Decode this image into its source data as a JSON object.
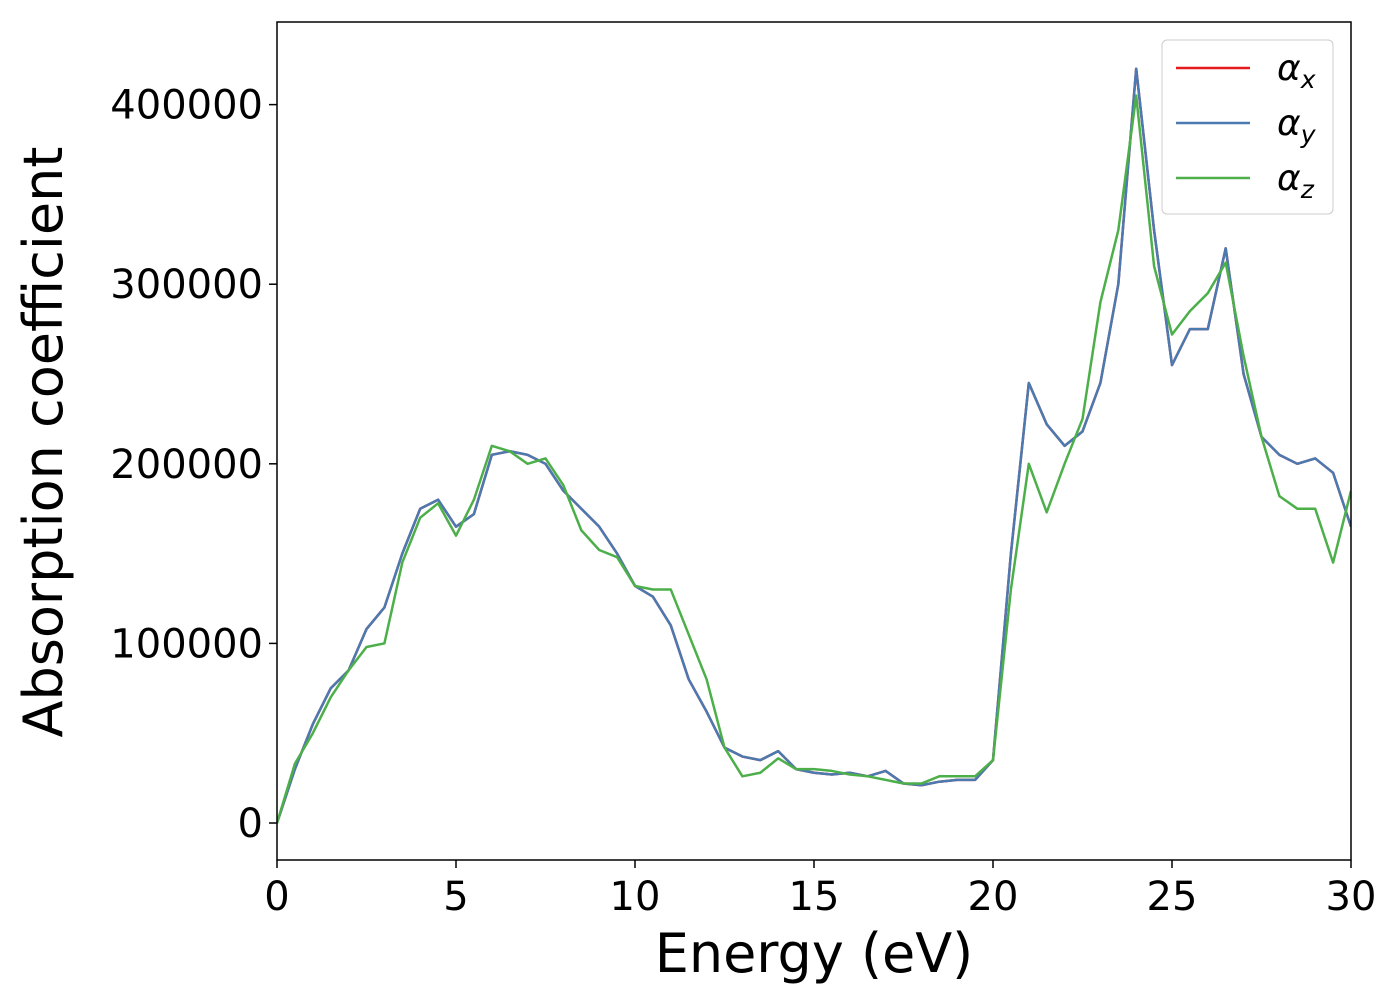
{
  "chart_data": {
    "type": "line",
    "xlabel": "Energy (eV)",
    "ylabel": "Absorption coefficient",
    "x": [
      0,
      0.5,
      1,
      1.5,
      2,
      2.5,
      3,
      3.5,
      4,
      4.5,
      5,
      5.5,
      6,
      6.5,
      7,
      7.5,
      8,
      8.5,
      9,
      9.5,
      10,
      10.5,
      11,
      11.5,
      12,
      12.5,
      13,
      13.5,
      14,
      14.5,
      15,
      15.5,
      16,
      16.5,
      17,
      17.5,
      18,
      18.5,
      19,
      19.5,
      20,
      20.5,
      21,
      21.5,
      22,
      22.5,
      23,
      23.5,
      24,
      24.5,
      25,
      25.5,
      26,
      26.5,
      27,
      27.5,
      28,
      28.5,
      29,
      29.5,
      30
    ],
    "series": [
      {
        "name": "αx",
        "color": "#e41a1c",
        "values": [
          0,
          30000,
          55000,
          75000,
          85000,
          108000,
          120000,
          150000,
          175000,
          180000,
          165000,
          172000,
          205000,
          207000,
          205000,
          200000,
          185000,
          175000,
          165000,
          150000,
          132000,
          126000,
          110000,
          80000,
          62000,
          42000,
          37000,
          35000,
          40000,
          30000,
          28000,
          27000,
          28000,
          26000,
          29000,
          22000,
          21000,
          23000,
          24000,
          24000,
          35000,
          150000,
          245000,
          222000,
          210000,
          218000,
          245000,
          300000,
          420000,
          330000,
          255000,
          275000,
          275000,
          320000,
          250000,
          215000,
          205000,
          200000,
          203000,
          195000,
          165000
        ]
      },
      {
        "name": "αy",
        "color": "#4a7ab0",
        "values": [
          0,
          30000,
          55000,
          75000,
          85000,
          108000,
          120000,
          150000,
          175000,
          180000,
          165000,
          172000,
          205000,
          207000,
          205000,
          200000,
          185000,
          175000,
          165000,
          150000,
          132000,
          126000,
          110000,
          80000,
          62000,
          42000,
          37000,
          35000,
          40000,
          30000,
          28000,
          27000,
          28000,
          26000,
          29000,
          22000,
          21000,
          23000,
          24000,
          24000,
          35000,
          150000,
          245000,
          222000,
          210000,
          218000,
          245000,
          300000,
          420000,
          330000,
          255000,
          275000,
          275000,
          320000,
          250000,
          215000,
          205000,
          200000,
          203000,
          195000,
          165000
        ]
      },
      {
        "name": "αz",
        "color": "#4daf4a",
        "values": [
          0,
          33000,
          50000,
          70000,
          85000,
          98000,
          100000,
          145000,
          170000,
          178000,
          160000,
          180000,
          210000,
          207000,
          200000,
          203000,
          188000,
          163000,
          152000,
          148000,
          132000,
          130000,
          130000,
          105000,
          80000,
          42000,
          26000,
          28000,
          36000,
          30000,
          30000,
          29000,
          27000,
          26000,
          24000,
          22000,
          22000,
          26000,
          26000,
          26000,
          35000,
          130000,
          200000,
          173000,
          200000,
          225000,
          290000,
          330000,
          405000,
          310000,
          272000,
          285000,
          295000,
          312000,
          260000,
          215000,
          182000,
          175000,
          175000,
          145000,
          185000
        ]
      }
    ],
    "xlim": [
      0,
      30
    ],
    "xticks": [
      0,
      5,
      10,
      15,
      20,
      25,
      30
    ],
    "ylim": [
      -20600,
      446000
    ],
    "yticks": [
      0,
      100000,
      200000,
      300000,
      400000
    ],
    "legend": "upper right"
  }
}
